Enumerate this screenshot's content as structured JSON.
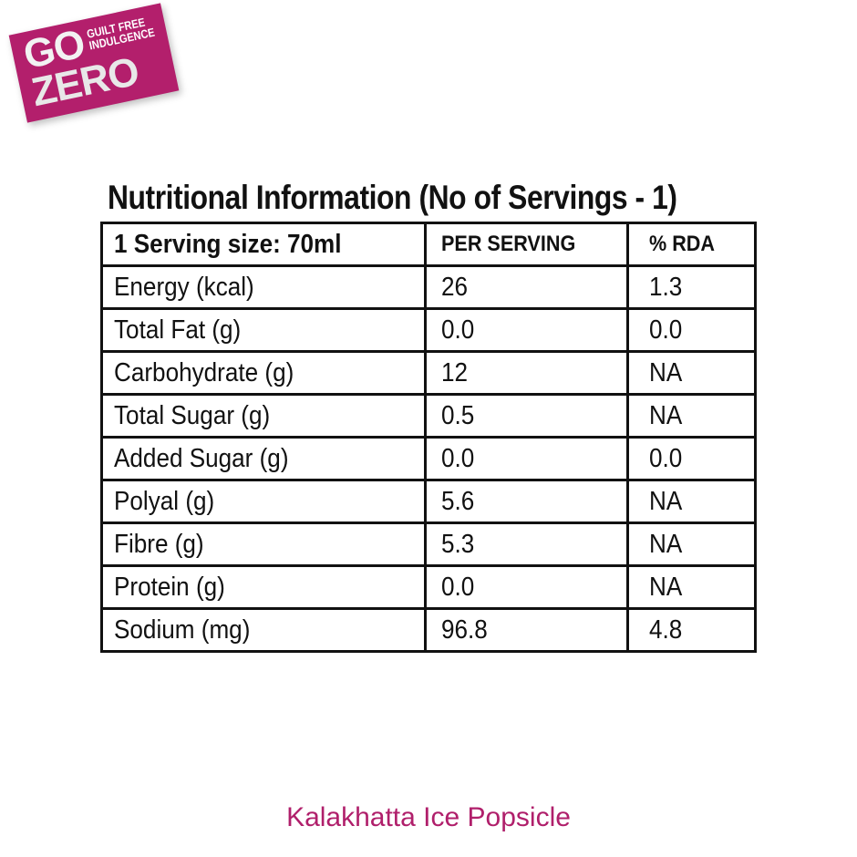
{
  "badge": {
    "line1": "GO",
    "line2": "ZERO",
    "tagline_1": "GUILT FREE",
    "tagline_2": "INDULGENCE",
    "color": "#b31f6c"
  },
  "title": "Nutritional Information (No of Servings - 1)",
  "table": {
    "headers": [
      "1 Serving size: 70ml",
      "PER SERVING",
      "% RDA"
    ],
    "rows": [
      [
        "Energy (kcal)",
        "26",
        "1.3"
      ],
      [
        "Total Fat (g)",
        "0.0",
        "0.0"
      ],
      [
        "Carbohydrate (g)",
        "12",
        "NA"
      ],
      [
        "Total Sugar (g)",
        "0.5",
        "NA"
      ],
      [
        "Added Sugar (g)",
        "0.0",
        "0.0"
      ],
      [
        "Polyal (g)",
        "5.6",
        "NA"
      ],
      [
        "Fibre (g)",
        "5.3",
        "NA"
      ],
      [
        "Protein (g)",
        "0.0",
        "NA"
      ],
      [
        "Sodium (mg)",
        "96.8",
        "4.8"
      ]
    ]
  },
  "product_name": "Kalakhatta Ice Popsicle",
  "accent_color": "#b01f6b"
}
